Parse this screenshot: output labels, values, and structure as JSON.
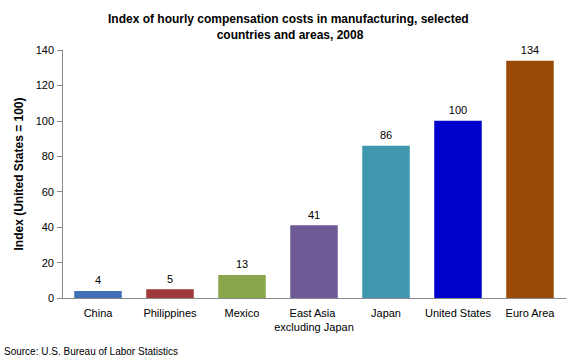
{
  "chart_data": {
    "type": "bar",
    "title": "Index of hourly compensation costs in manufacturing, selected countries and areas, 2008",
    "y_label": "Index (United States = 100)",
    "source": "Source: U.S. Bureau of Labor Statistics",
    "categories": [
      "China",
      "Philippines",
      "Mexico",
      "East Asia excluding Japan",
      "Japan",
      "United States",
      "Euro Area"
    ],
    "values": [
      4,
      5,
      13,
      41,
      86,
      100,
      134
    ],
    "colors": [
      "#3f6fb5",
      "#9e3a3a",
      "#8aa84b",
      "#6e5a94",
      "#3f97ae",
      "#0000cc",
      "#9a4a06"
    ],
    "ylim": [
      0,
      140
    ],
    "yticks": [
      0,
      20,
      40,
      60,
      80,
      100,
      120,
      140
    ],
    "grid": false,
    "data_labels": true
  }
}
